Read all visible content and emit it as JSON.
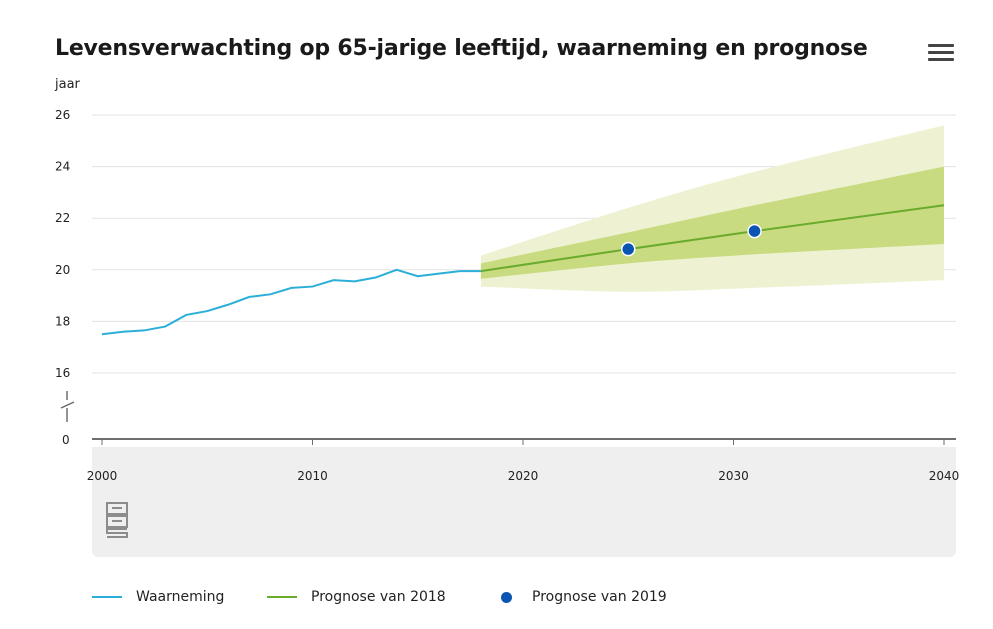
{
  "title": "Levensverwachting op 65-jarige leeftijd, waarneming en prognose",
  "menu_icon": "hamburger-menu-icon",
  "logo_icon": "cbs-logo-icon",
  "chart_data": {
    "type": "line",
    "title": "Levensverwachting op 65-jarige leeftijd, waarneming en prognose",
    "ylabel": "jaar",
    "xlabel": "",
    "xlim": [
      2000,
      2040
    ],
    "ylim": [
      16,
      26
    ],
    "y_axis_break": true,
    "y_ticks": [
      "26",
      "24",
      "22",
      "20",
      "18",
      "16",
      "0"
    ],
    "x_ticks": [
      "2000",
      "2010",
      "2020",
      "2030",
      "2040"
    ],
    "grid": true,
    "legend_position": "bottom-left",
    "series": [
      {
        "name": "Waarneming",
        "type": "line",
        "color": "#2bafd9",
        "x": [
          2000,
          2001,
          2002,
          2003,
          2004,
          2005,
          2006,
          2007,
          2008,
          2009,
          2010,
          2011,
          2012,
          2013,
          2014,
          2015,
          2016,
          2017,
          2018
        ],
        "y": [
          17.5,
          17.6,
          17.65,
          17.8,
          18.25,
          18.4,
          18.65,
          18.95,
          19.05,
          19.3,
          19.35,
          19.6,
          19.55,
          19.7,
          20.0,
          19.75,
          19.85,
          19.95,
          19.95
        ]
      },
      {
        "name": "Prognose van 2018",
        "type": "line",
        "color": "#6aab2e",
        "x": [
          2018,
          2025,
          2031,
          2040
        ],
        "y": [
          19.95,
          20.8,
          21.5,
          22.5
        ],
        "band_inner": {
          "color": "#c8db80",
          "x": [
            2018,
            2025,
            2031,
            2040
          ],
          "lower": [
            19.65,
            20.25,
            20.6,
            21.0
          ],
          "upper": [
            20.25,
            21.45,
            22.5,
            24.0
          ]
        },
        "band_outer": {
          "color": "#eef2d2",
          "x": [
            2018,
            2025,
            2031,
            2040
          ],
          "lower": [
            19.35,
            19.15,
            19.3,
            19.6
          ],
          "upper": [
            20.55,
            22.4,
            23.8,
            25.6
          ]
        }
      },
      {
        "name": "Prognose van 2019",
        "type": "scatter",
        "color": "#0a55b4",
        "x": [
          2025,
          2031
        ],
        "y": [
          20.8,
          21.5
        ]
      }
    ]
  },
  "legend": {
    "items": [
      {
        "label": "Waarneming",
        "color": "#2bafd9"
      },
      {
        "label": "Prognose van 2018",
        "color": "#6aab2e"
      },
      {
        "label": "Prognose van 2019",
        "color": "#0a55b4"
      }
    ]
  }
}
